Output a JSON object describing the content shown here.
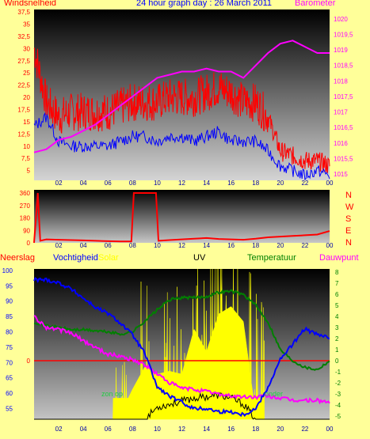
{
  "header": {
    "left_label": "Windsnelheid",
    "title": "24 hour graph day : 26 March 2011",
    "right_label": "Barometer"
  },
  "x_ticks": [
    "02",
    "04",
    "06",
    "08",
    "10",
    "12",
    "14",
    "16",
    "18",
    "20",
    "22",
    "00"
  ],
  "lower_header": {
    "neerslag": "Neerslag",
    "vochtigheid": "Vochtigheid",
    "solar": "Solar",
    "uv": "UV",
    "temperatuur": "Temperatuur",
    "dauwpunt": "Dauwpunt"
  },
  "sun_up_label": "zon op",
  "sun_down_label": "onder",
  "colors": {
    "background": "#ffff99",
    "wind": "#ff0000",
    "wind_avg": "#0000ff",
    "barometer": "#ff00ff",
    "humidity": "#0000ff",
    "solar": "#ffff00",
    "uv": "#000000",
    "temperature": "#008000",
    "dewpoint": "#ff00ff",
    "rain": "#ff0000"
  },
  "chart_data": [
    {
      "type": "line",
      "title": "24 hour graph day : 26 March 2011",
      "xlabel": "",
      "ylabel_left": "Windsnelheid",
      "ylabel_right": "Barometer",
      "x": [
        0,
        1,
        2,
        3,
        4,
        5,
        6,
        7,
        8,
        9,
        10,
        11,
        12,
        13,
        14,
        15,
        16,
        17,
        18,
        19,
        20,
        21,
        22,
        23,
        24
      ],
      "y_left_ticks": [
        "5",
        "7,5",
        "10",
        "12,5",
        "15",
        "17,5",
        "20",
        "22,5",
        "25",
        "27,5",
        "30",
        "32,5",
        "35",
        "37,5"
      ],
      "y_left_lim": [
        3,
        38
      ],
      "y_right_ticks": [
        "1015",
        "1015,5",
        "1016",
        "1016,5",
        "1017",
        "1017,5",
        "1018",
        "1018,5",
        "1019",
        "1019,5",
        "1020"
      ],
      "y_right_lim": [
        1014.8,
        1020.3
      ],
      "series": [
        {
          "name": "Windsnelheid",
          "axis": "left",
          "values": [
            30,
            19,
            16,
            17,
            17,
            17,
            17,
            18,
            19,
            19,
            19,
            20,
            20,
            20,
            21,
            22,
            21,
            19,
            19,
            16,
            9,
            8,
            7,
            7,
            6
          ]
        },
        {
          "name": "",
          "axis": "left",
          "values": [
            14,
            16,
            11,
            10,
            10,
            10,
            10,
            11,
            12,
            12,
            11,
            12,
            12,
            11,
            12,
            13,
            11,
            11,
            11,
            9,
            6,
            5,
            4,
            5,
            4
          ]
        },
        {
          "name": "Barometer",
          "axis": "right",
          "values": [
            1015.7,
            1015.8,
            1016.1,
            1016.2,
            1016.4,
            1016.6,
            1016.9,
            1017.2,
            1017.5,
            1017.8,
            1018.1,
            1018.2,
            1018.3,
            1018.3,
            1018.4,
            1018.3,
            1018.3,
            1018.1,
            1018.5,
            1018.9,
            1019.2,
            1019.3,
            1019.1,
            1018.9,
            1018.9
          ]
        }
      ]
    },
    {
      "type": "line",
      "title": "",
      "xlabel": "",
      "ylabel": "",
      "y_ticks": [
        "0",
        "90",
        "180",
        "270",
        "360"
      ],
      "y_right_labels": [
        "N",
        "W",
        "S",
        "E",
        "N"
      ],
      "ylim": [
        0,
        360
      ],
      "x": [
        0,
        0.3,
        0.5,
        1,
        2,
        3,
        4,
        5,
        6,
        7,
        7.9,
        8.1,
        9,
        9.9,
        10.1,
        11,
        12,
        13,
        14,
        15,
        16,
        17,
        18,
        19,
        20,
        21,
        22,
        23,
        24
      ],
      "series": [
        {
          "name": "",
          "values": [
            0,
            360,
            15,
            25,
            22,
            20,
            18,
            15,
            12,
            10,
            10,
            360,
            360,
            360,
            15,
            20,
            25,
            30,
            35,
            28,
            25,
            22,
            30,
            40,
            45,
            50,
            55,
            60,
            85
          ]
        }
      ]
    },
    {
      "type": "line",
      "title": "",
      "xlabel": "",
      "ylabel_left": "Vochtigheid",
      "ylabel_right": "Temperatuur",
      "x": [
        0,
        1,
        2,
        3,
        4,
        5,
        6,
        7,
        8,
        9,
        10,
        11,
        12,
        13,
        14,
        15,
        16,
        17,
        18,
        19,
        20,
        21,
        22,
        23,
        24
      ],
      "y_left_ticks": [
        "55",
        "60",
        "65",
        "70",
        "75",
        "80",
        "85",
        "90",
        "95",
        "100"
      ],
      "y_left_lim": [
        51.5,
        100.5
      ],
      "y_right_ticks": [
        "-5",
        "-4",
        "-3",
        "-2",
        "-1",
        "0",
        "1",
        "2",
        "3",
        "4",
        "5",
        "6",
        "7",
        "8"
      ],
      "y_right_lim": [
        -5.3,
        8.3
      ],
      "rain_line": 0,
      "series": [
        {
          "name": "Vochtigheid",
          "axis": "left",
          "values": [
            97,
            97,
            96,
            94,
            91,
            88,
            86,
            83,
            79,
            73,
            62,
            59,
            57,
            55,
            55,
            54,
            54,
            53,
            55,
            62,
            71,
            76,
            81,
            79,
            78
          ]
        },
        {
          "name": "Temperatuur",
          "axis": "right",
          "values": [
            3.5,
            3.2,
            3,
            2.8,
            2.8,
            2.7,
            2.6,
            2.4,
            2.6,
            3.6,
            4.6,
            5.5,
            5.7,
            5.7,
            5.8,
            6.2,
            6.3,
            6.0,
            5.0,
            3.5,
            1,
            0,
            -0.6,
            -0.8,
            0
          ]
        },
        {
          "name": "Dauwpunt",
          "axis": "right",
          "values": [
            4,
            3,
            2.8,
            2.5,
            1.8,
            1.2,
            0.6,
            0.4,
            0.1,
            -0.4,
            -1.2,
            -2,
            -2.5,
            -2.6,
            -2.8,
            -3,
            -3.2,
            -3.3,
            -3.3,
            -3.2,
            -3.4,
            -3.6,
            -3.6,
            -3.6,
            -3.8
          ]
        },
        {
          "name": "Solar",
          "axis": "fill",
          "fraction_of_plot": true,
          "values": [
            0,
            0,
            0,
            0,
            0,
            0,
            0,
            0.03,
            0.2,
            0.35,
            0.3,
            0.32,
            0.3,
            0.6,
            0.45,
            0.7,
            0.75,
            0.65,
            0.02,
            0,
            0,
            0,
            0,
            0,
            0
          ]
        },
        {
          "name": "UV",
          "axis": "fill",
          "fraction_of_plot": true,
          "values": [
            0,
            0,
            0,
            0,
            0,
            0,
            0,
            0,
            0,
            0,
            0.08,
            0.1,
            0.12,
            0.14,
            0.15,
            0.16,
            0.14,
            0.1,
            0,
            0,
            0,
            0,
            0,
            0,
            0
          ]
        }
      ]
    }
  ]
}
